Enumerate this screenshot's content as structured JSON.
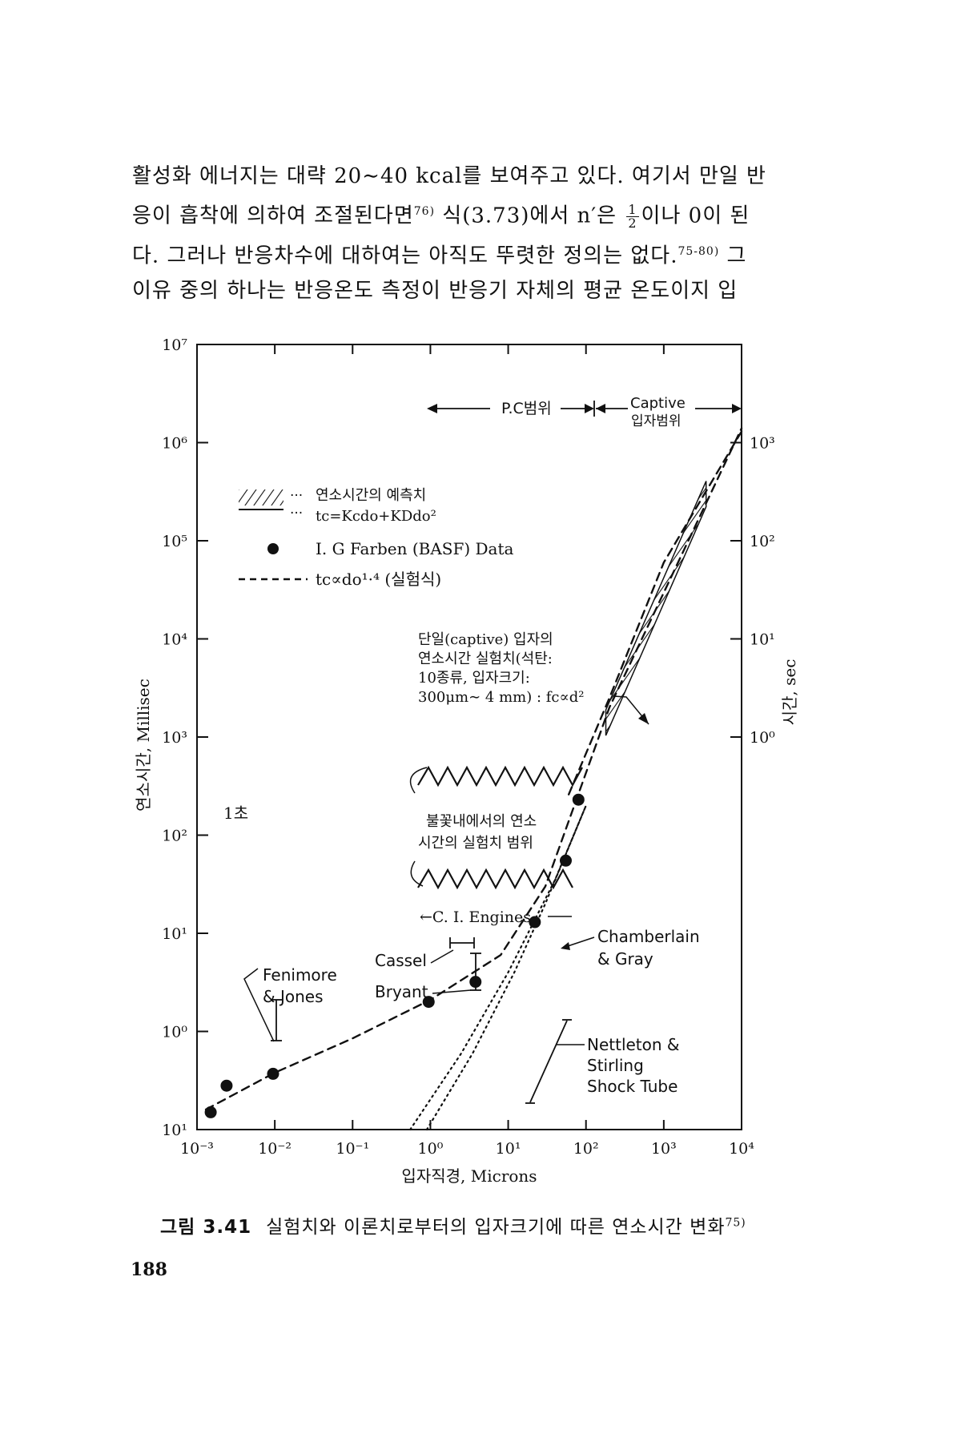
{
  "paragraph": {
    "line1": "활성화 에너지는 대략 20∼40 kcal를 보여주고 있다. 여기서 만일 반",
    "line2_a": "응이 흡착에 의하여 조절된다면",
    "line2_ref": "76)",
    "line2_b": " 식(3.73)에서 n′은 ",
    "frac_num": "1",
    "frac_den": "2",
    "line2_c": "이나 0이 된",
    "line3_a": "다. 그러나 반응차수에 대하여는 아직도 뚜렷한 정의는 없다.",
    "line3_ref": "75-80)",
    "line3_b": " 그",
    "line4": "이유 중의 하나는 반응온도 측정이 반응기 자체의 평균 온도이지 입"
  },
  "chart_data": {
    "type": "line",
    "xlabel": "입자직경, Microns",
    "ylabel_left": "연소시간, Millisec",
    "ylabel_right": "시간, sec",
    "xscale": "log",
    "yscale": "log",
    "xlim": [
      0.001,
      10000
    ],
    "ylim": [
      0.1,
      10000000
    ],
    "x_ticks": [
      "10⁻³",
      "10⁻²",
      "10⁻¹",
      "10⁰",
      "10¹",
      "10²",
      "10³",
      "10⁴"
    ],
    "y_ticks": [
      "10¹",
      "10⁰",
      "10¹",
      "10²",
      "10³",
      "10⁴",
      "10⁵",
      "10⁶",
      "10⁷"
    ],
    "right_ticks": [
      "10⁰",
      "10¹",
      "10²",
      "10³"
    ],
    "range_labels": {
      "pc": "P.C범위",
      "captive_1": "Captive",
      "captive_2": "입자범위"
    },
    "legend": {
      "hatch_1": "연소시간의 예측치",
      "hatch_2": "tc=Kcdo+KDdo²",
      "dot": "I. G Farben (BASF) Data",
      "dash": "tc∝do¹·⁴ (실험식)"
    },
    "series": [
      {
        "name": "I. G Farben (BASF) Data",
        "style": "points",
        "x": [
          0.0015,
          0.0024,
          0.0095,
          0.95,
          3.8,
          22,
          55,
          80
        ],
        "y": [
          0.15,
          0.28,
          0.37,
          2.0,
          3.2,
          13,
          55,
          230
        ]
      },
      {
        "name": "tc∝do¹·⁴ (실험식)",
        "style": "dashed",
        "x": [
          0.0013,
          0.01,
          0.1,
          1,
          8,
          30,
          200,
          10000
        ],
        "y": [
          0.16,
          0.38,
          0.85,
          2.1,
          6,
          30,
          2000,
          1400000
        ]
      },
      {
        "name": "dashed-upper",
        "style": "dashed",
        "x": [
          60,
          200,
          1000,
          10000
        ],
        "y": [
          260,
          2500,
          60000,
          1300000
        ]
      },
      {
        "name": "dotted-left",
        "style": "dotted",
        "x": [
          0.9,
          3.5,
          12,
          30,
          100
        ],
        "y": [
          0.1,
          0.6,
          4,
          20,
          200
        ]
      },
      {
        "name": "dotted-right",
        "style": "dotted",
        "x": [
          0.55,
          2.5,
          10,
          40,
          100
        ],
        "y": [
          0.1,
          0.6,
          4,
          35,
          200
        ]
      }
    ],
    "hatched_band": {
      "label": "연소시간의 예측치",
      "x": [
        180,
        3500
      ],
      "y": [
        1400,
        300000
      ]
    },
    "annotations": {
      "captive_1": "단일(captive) 입자의",
      "captive_2": "연소시간 실험치(석탄:",
      "captive_3": "10종류, 입자크기:",
      "captive_4": "300μm∼ 4 mm) : fc∝d²",
      "flame_1": "불꽃내에서의 연소",
      "flame_2": "시간의 실험치 범위",
      "one_second": "1초",
      "ci_engines": "←C. I. Engines",
      "chamberlain_1": "Chamberlain",
      "chamberlain_2": "& Gray",
      "cassel": "Cassel",
      "bryant": "Bryant",
      "fenimore_1": "Fenimore",
      "fenimore_2": "& Jones",
      "nettleton_1": "Nettleton &",
      "nettleton_2": "Stirling",
      "nettleton_3": "Shock Tube"
    }
  },
  "caption": {
    "figure_number": "그림 3.41",
    "text": "실험치와 이론치로부터의 입자크기에 따른 연소시간 변화",
    "ref": "75)"
  },
  "page_number": "188"
}
